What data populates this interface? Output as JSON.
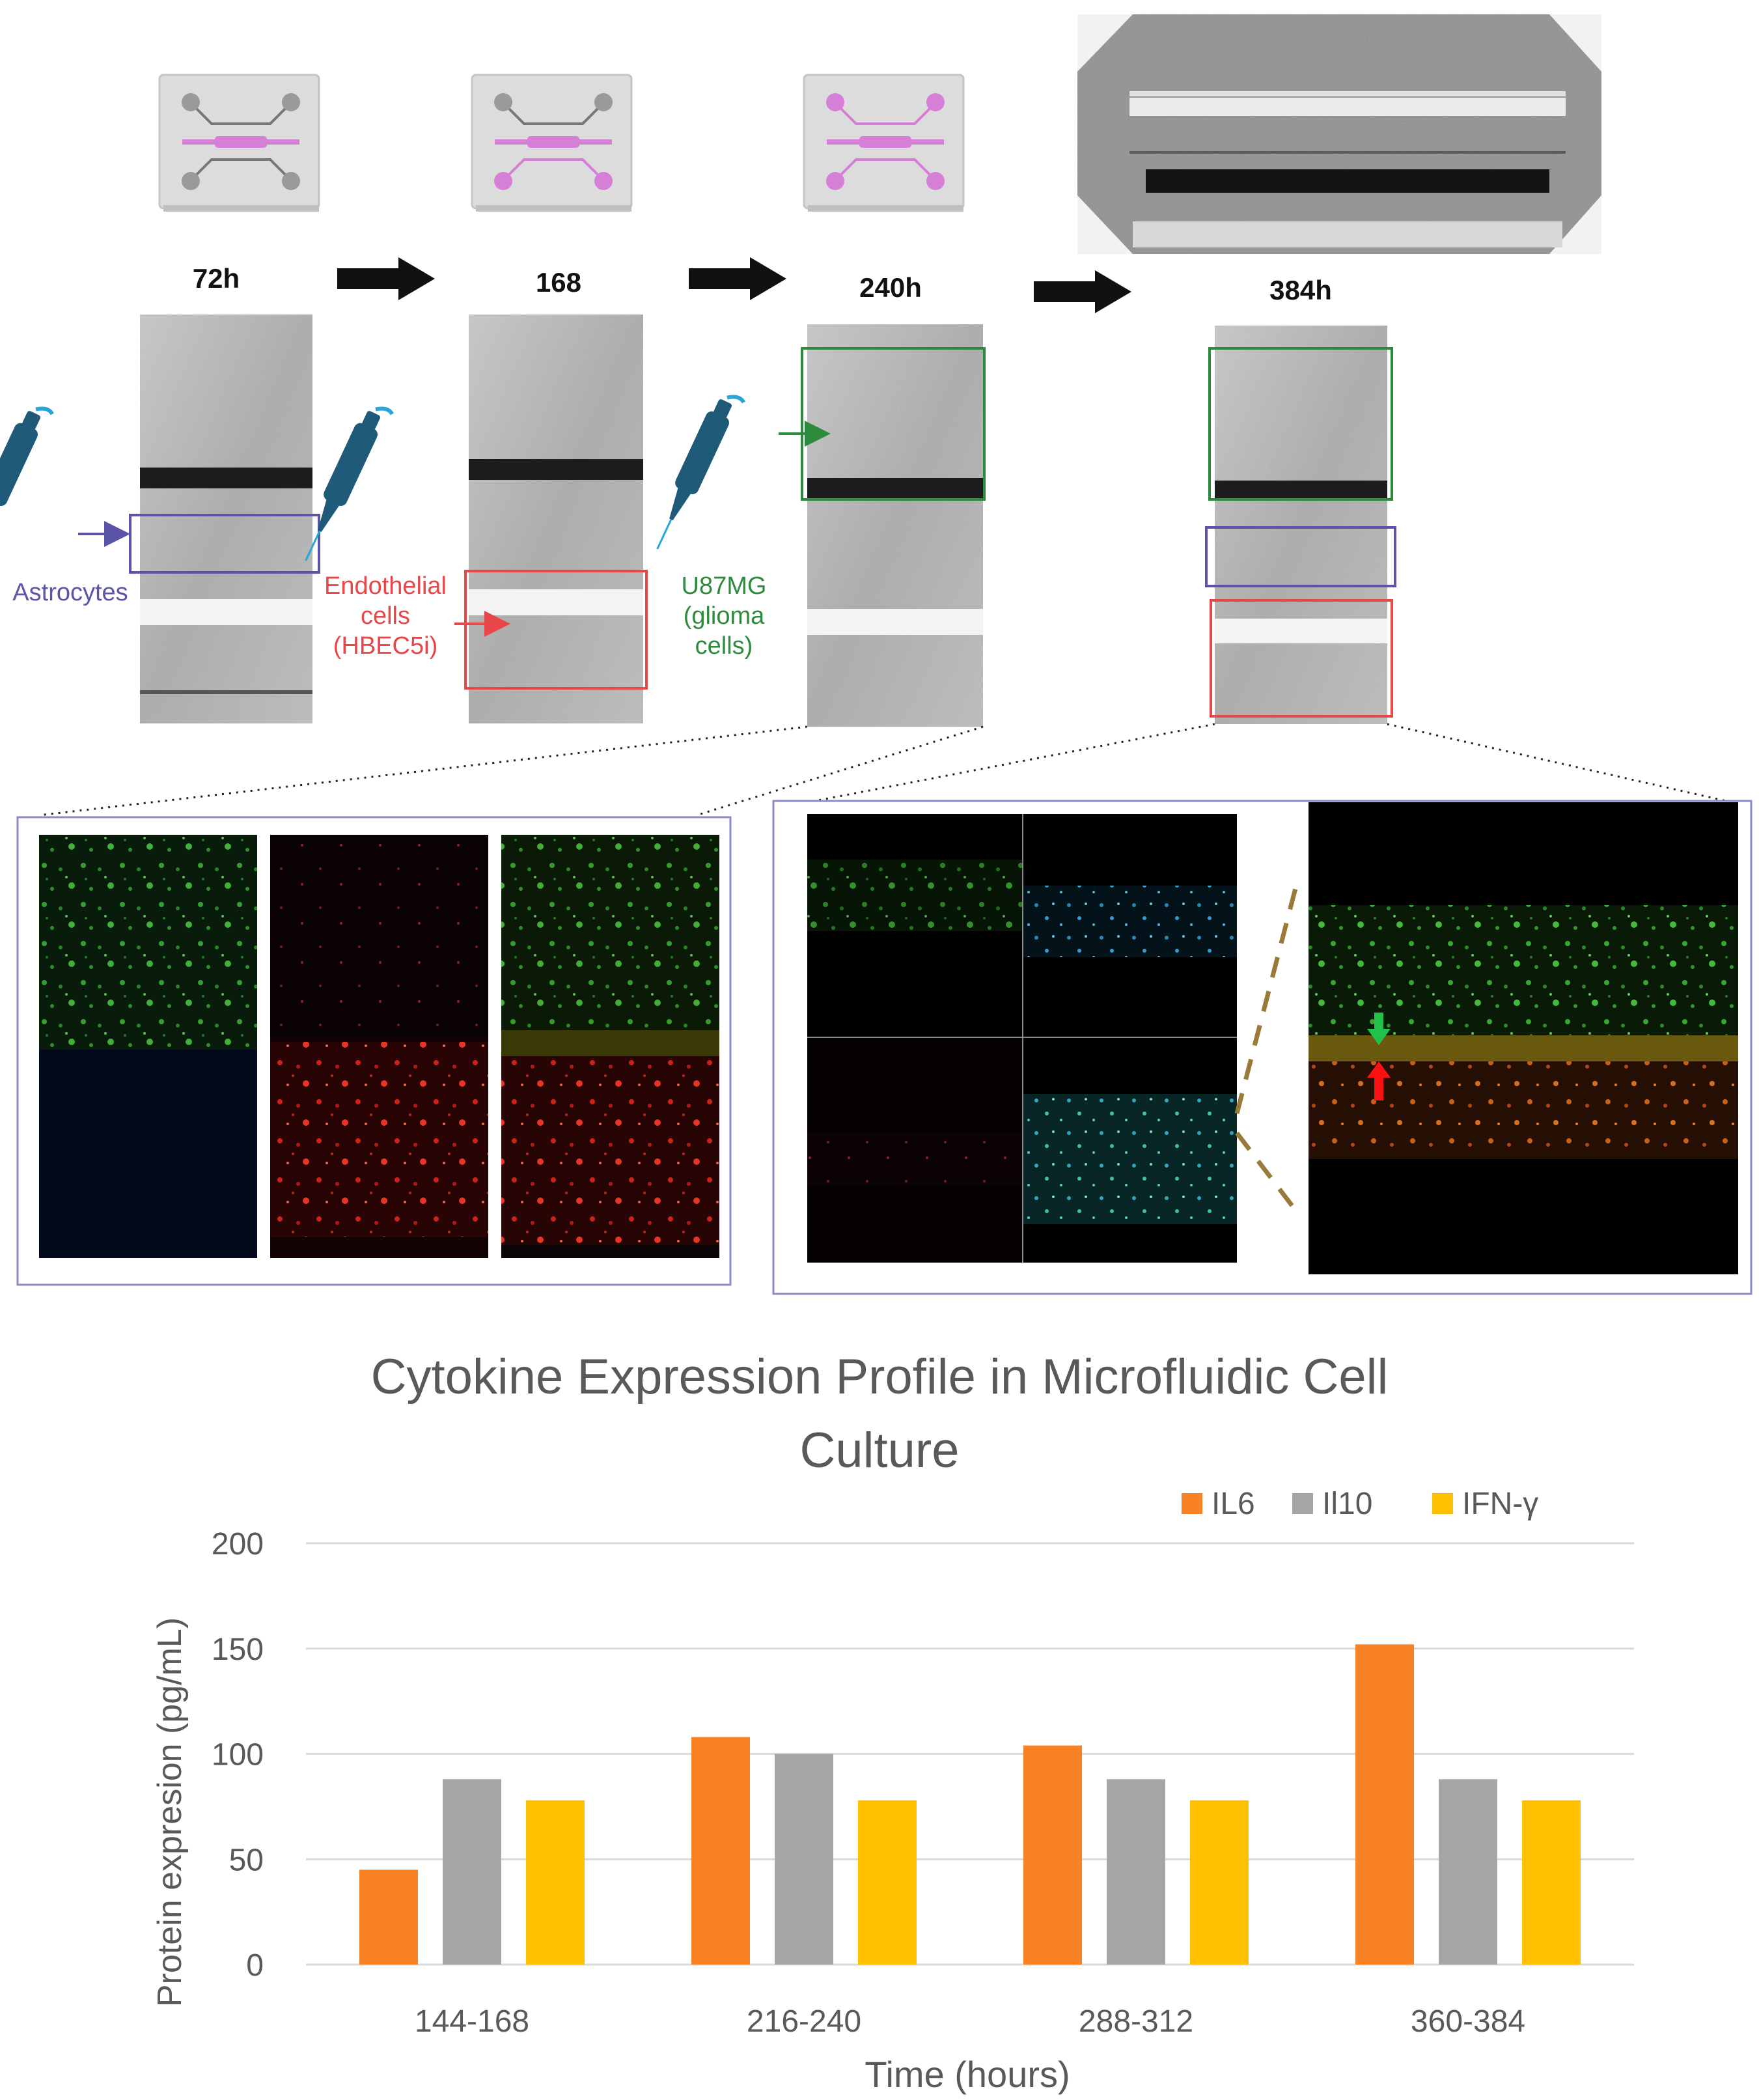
{
  "timeline": {
    "steps": [
      {
        "label": "72h"
      },
      {
        "label": "168"
      },
      {
        "label": "240h"
      },
      {
        "label": "384h"
      }
    ],
    "cell_labels": {
      "astrocytes": [
        "Astrocytes"
      ],
      "endothelial": [
        "Endothelial",
        "cells",
        "(HBEC5i)"
      ],
      "glioma": [
        "U87MG",
        "(glioma",
        "cells)"
      ]
    }
  },
  "colors": {
    "astrocytes": "#5a55a8",
    "endothelial": "#e8474a",
    "glioma": "#2e8b3e",
    "device_pink": "#d67fd6",
    "il6": "#f98224",
    "il10": "#a6a6a6",
    "ifn": "#ffc000"
  },
  "chart_data": {
    "type": "bar",
    "title": "Cytokine Expression Profile in Microfluidic Cell Culture",
    "title_lines": [
      "Cytokine Expression Profile in Microfluidic Cell",
      "Culture"
    ],
    "xlabel": "Time (hours)",
    "ylabel": "Protein expresion (pg/mL)",
    "categories": [
      "144-168",
      "216-240",
      "288-312",
      "360-384"
    ],
    "series": [
      {
        "name": "IL6",
        "values": [
          45,
          108,
          104,
          152
        ]
      },
      {
        "name": "Il10",
        "values": [
          88,
          100,
          88,
          88
        ]
      },
      {
        "name": "IFN-γ",
        "values": [
          78,
          78,
          78,
          78
        ]
      }
    ],
    "ylim": [
      0,
      200
    ],
    "yticks": [
      0,
      50,
      100,
      150,
      200
    ],
    "grid": true,
    "legend_position": "top-right"
  }
}
